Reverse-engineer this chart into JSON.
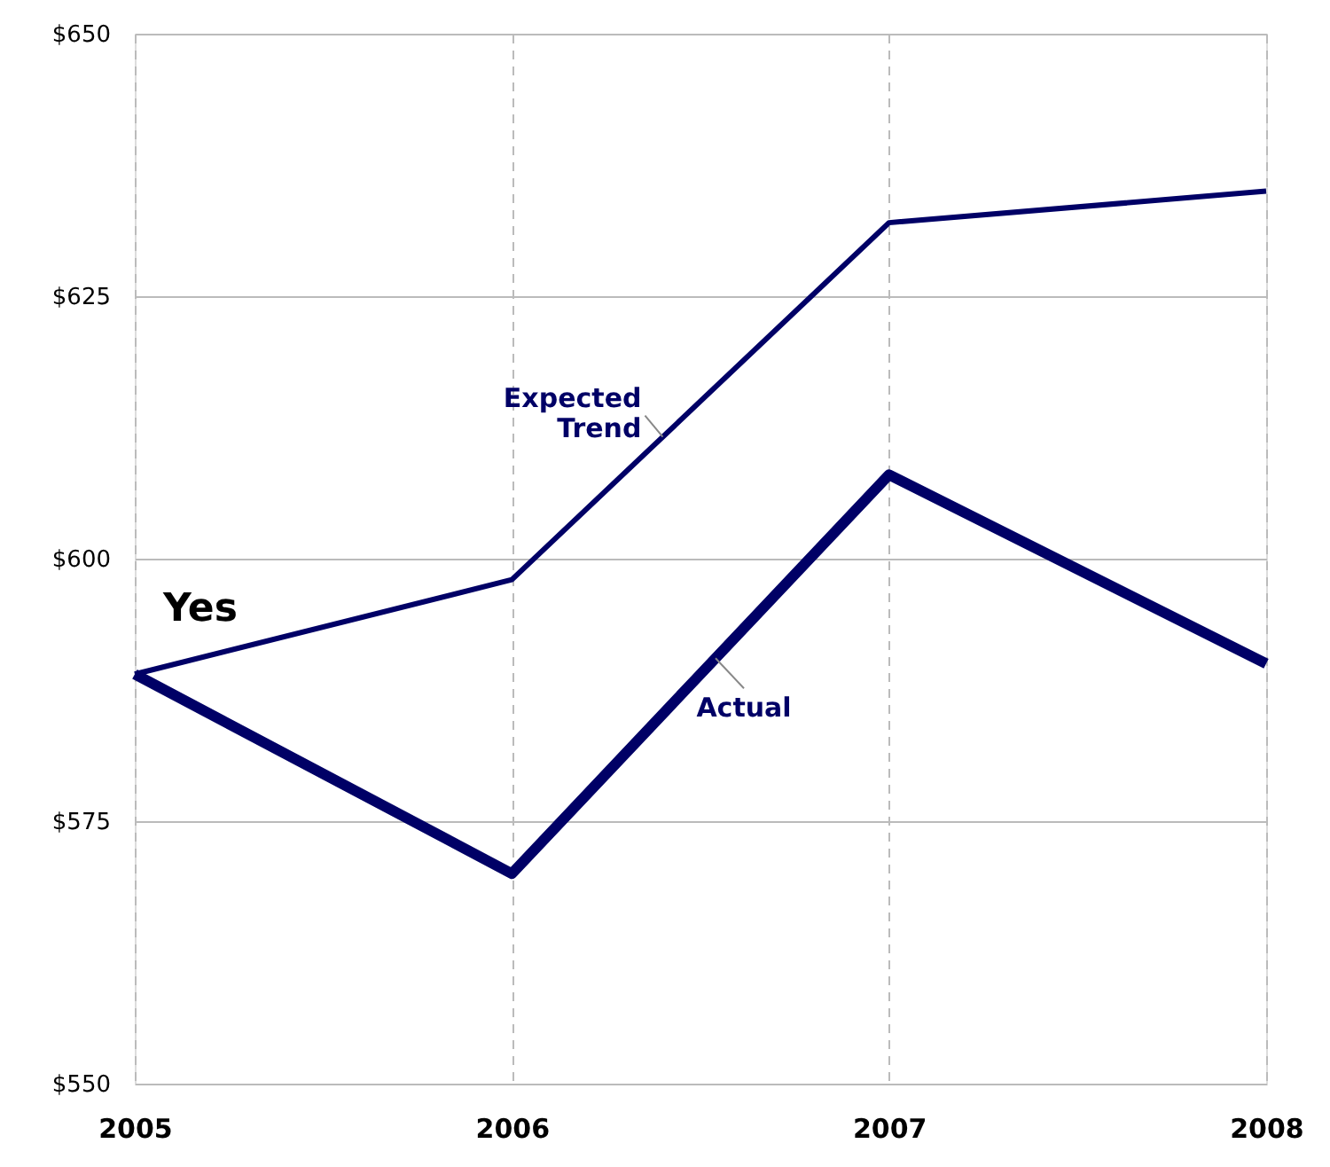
{
  "chart_data": {
    "type": "line",
    "x": [
      2005,
      2006,
      2007,
      2008
    ],
    "series": [
      {
        "name": "Expected Trend",
        "color": "#000066",
        "values": [
          589,
          598,
          632,
          635
        ]
      },
      {
        "name": "Actual",
        "color": "#000066",
        "values": [
          589,
          570,
          608,
          590
        ]
      }
    ],
    "xlim": [
      2005,
      2008
    ],
    "xticks": [
      2005,
      2006,
      2007,
      2008
    ],
    "ylim": [
      550,
      650
    ],
    "yticks": [
      {
        "value": 550,
        "label": "$550"
      },
      {
        "value": 575,
        "label": "$575"
      },
      {
        "value": 600,
        "label": "$600"
      },
      {
        "value": 625,
        "label": "$625"
      },
      {
        "value": 650,
        "label": "$650"
      }
    ],
    "annotations": [
      "Yes"
    ],
    "grid": true,
    "marker": "none",
    "line_style": "solid"
  }
}
